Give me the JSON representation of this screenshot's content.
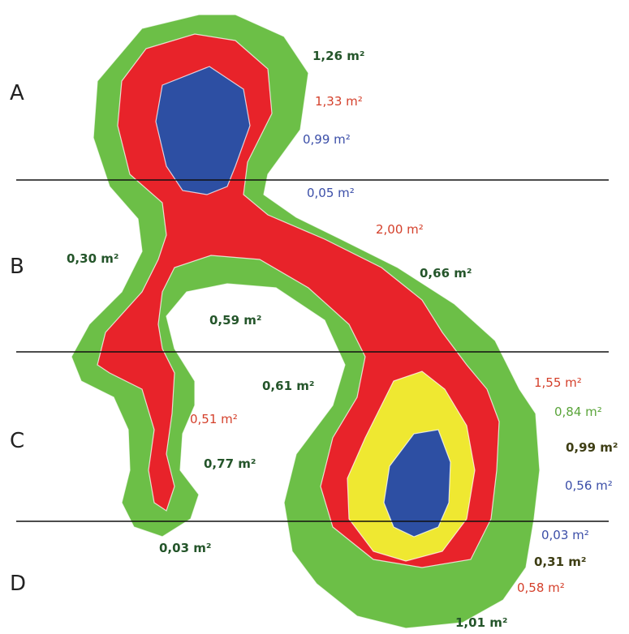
{
  "colors": {
    "green": "#6cbf47",
    "red": "#e8232a",
    "yellow": "#efe831",
    "blue": "#2d4fa3",
    "dark_green_text": "#24552a",
    "red_text": "#d43f2a",
    "blue_text": "#3b4ea8",
    "light_green_text": "#5aa43a",
    "olive_text": "#3e3e14",
    "divider": "#111111"
  },
  "sections": [
    "A",
    "B",
    "C",
    "D"
  ],
  "areas": [
    {
      "text": "1,26 m²",
      "color": "dark_green_text",
      "bold": true
    },
    {
      "text": "1,33 m²",
      "color": "red_text",
      "bold": false
    },
    {
      "text": "0,99 m²",
      "color": "blue_text",
      "bold": false
    },
    {
      "text": "0,05 m²",
      "color": "blue_text",
      "bold": false
    },
    {
      "text": "2,00 m²",
      "color": "red_text",
      "bold": false
    },
    {
      "text": "0,30 m²",
      "color": "dark_green_text",
      "bold": true
    },
    {
      "text": "0,66 m²",
      "color": "dark_green_text",
      "bold": true
    },
    {
      "text": "0,59 m²",
      "color": "dark_green_text",
      "bold": true
    },
    {
      "text": "0,61 m²",
      "color": "dark_green_text",
      "bold": true
    },
    {
      "text": "1,55 m²",
      "color": "red_text",
      "bold": false
    },
    {
      "text": "0,84 m²",
      "color": "light_green_text",
      "bold": false
    },
    {
      "text": "0,51 m²",
      "color": "red_text",
      "bold": false
    },
    {
      "text": "0,99 m²",
      "color": "olive_text",
      "bold": true
    },
    {
      "text": "0,77 m²",
      "color": "dark_green_text",
      "bold": true
    },
    {
      "text": "0,56 m²",
      "color": "blue_text",
      "bold": false
    },
    {
      "text": "0,03 m²",
      "color": "blue_text",
      "bold": false
    },
    {
      "text": "0,03 m²",
      "color": "dark_green_text",
      "bold": true
    },
    {
      "text": "0,31 m²",
      "color": "olive_text",
      "bold": true
    },
    {
      "text": "0,58 m²",
      "color": "red_text",
      "bold": false
    },
    {
      "text": "1,01 m²",
      "color": "dark_green_text",
      "bold": true
    }
  ]
}
